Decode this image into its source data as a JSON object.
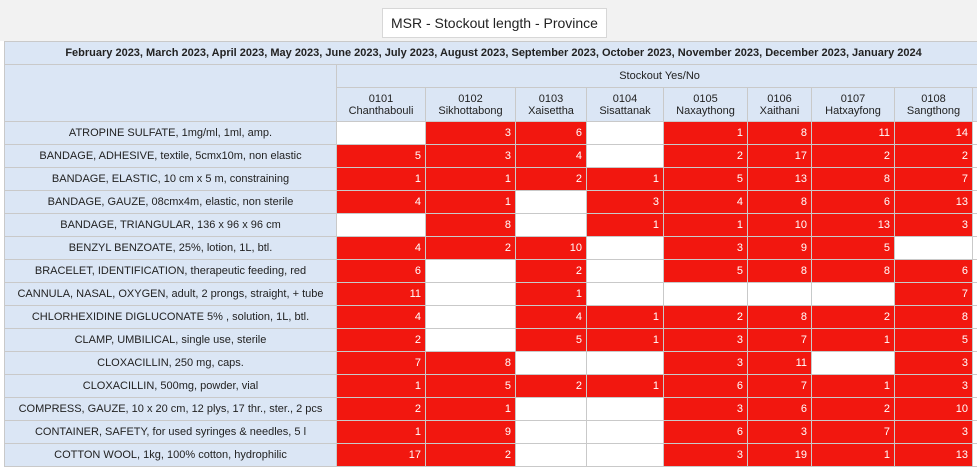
{
  "title": "MSR - Stockout length - Province",
  "period": "February 2023, March 2023, April 2023, May 2023, June 2023, July 2023, August 2023, September 2023, October 2023, November 2023, December 2023, January 2024",
  "group_label": "Stockout Yes/No",
  "colors": {
    "header_bg": "#dbe6f5",
    "stockout": "#f2170f",
    "no_stockout": "#ffffff"
  },
  "columns": [
    {
      "code": "0101",
      "name": "Chanthabouli"
    },
    {
      "code": "0102",
      "name": "Sikhottabong"
    },
    {
      "code": "0103",
      "name": "Xaisettha"
    },
    {
      "code": "0104",
      "name": "Sisattanak"
    },
    {
      "code": "0105",
      "name": "Naxaythong"
    },
    {
      "code": "0106",
      "name": "Xaithani"
    },
    {
      "code": "0107",
      "name": "Hatxayfong"
    },
    {
      "code": "0108",
      "name": "Sangthong"
    }
  ],
  "rows": [
    {
      "item": "ATROPINE SULFATE, 1mg/ml, 1ml, amp.",
      "values": [
        "",
        "3",
        "6",
        "",
        "1",
        "8",
        "11",
        "14"
      ]
    },
    {
      "item": "BANDAGE, ADHESIVE, textile, 5cmx10m, non elastic",
      "values": [
        "5",
        "3",
        "4",
        "",
        "2",
        "17",
        "2",
        "2"
      ]
    },
    {
      "item": "BANDAGE, ELASTIC, 10 cm x 5 m, constraining",
      "values": [
        "1",
        "1",
        "2",
        "1",
        "5",
        "13",
        "8",
        "7"
      ]
    },
    {
      "item": "BANDAGE, GAUZE, 08cmx4m, elastic, non sterile",
      "values": [
        "4",
        "1",
        "",
        "3",
        "4",
        "8",
        "6",
        "13"
      ]
    },
    {
      "item": "BANDAGE, TRIANGULAR, 136 x 96 x 96 cm",
      "values": [
        "",
        "8",
        "",
        "1",
        "1",
        "10",
        "13",
        "3"
      ]
    },
    {
      "item": "BENZYL BENZOATE, 25%, lotion, 1L, btl.",
      "values": [
        "4",
        "2",
        "10",
        "",
        "3",
        "9",
        "5",
        ""
      ]
    },
    {
      "item": "BRACELET, IDENTIFICATION, therapeutic feeding, red",
      "values": [
        "6",
        "",
        "2",
        "",
        "5",
        "8",
        "8",
        "6"
      ]
    },
    {
      "item": "CANNULA, NASAL, OXYGEN, adult, 2 prongs, straight, + tube",
      "values": [
        "11",
        "",
        "1",
        "",
        "",
        "",
        "",
        "7"
      ]
    },
    {
      "item": "CHLORHEXIDINE DIGLUCONATE 5% , solution, 1L, btl.",
      "values": [
        "4",
        "",
        "4",
        "1",
        "2",
        "8",
        "2",
        "8"
      ]
    },
    {
      "item": "CLAMP, UMBILICAL, single use, sterile",
      "values": [
        "2",
        "",
        "5",
        "1",
        "3",
        "7",
        "1",
        "5"
      ]
    },
    {
      "item": "CLOXACILLIN, 250 mg, caps.",
      "values": [
        "7",
        "8",
        "",
        "",
        "3",
        "11",
        "",
        "3"
      ]
    },
    {
      "item": "CLOXACILLIN, 500mg, powder, vial",
      "values": [
        "1",
        "5",
        "2",
        "1",
        "6",
        "7",
        "1",
        "3"
      ]
    },
    {
      "item": "COMPRESS, GAUZE, 10 x 20 cm, 12 plys, 17 thr., ster., 2 pcs",
      "values": [
        "2",
        "1",
        "",
        "",
        "3",
        "6",
        "2",
        "10"
      ]
    },
    {
      "item": "CONTAINER, SAFETY, for used syringes & needles, 5 l",
      "values": [
        "1",
        "9",
        "",
        "",
        "6",
        "3",
        "7",
        "3"
      ]
    },
    {
      "item": "COTTON WOOL, 1kg, 100% cotton, hydrophilic",
      "values": [
        "17",
        "2",
        "",
        "",
        "3",
        "19",
        "1",
        "13"
      ]
    }
  ]
}
